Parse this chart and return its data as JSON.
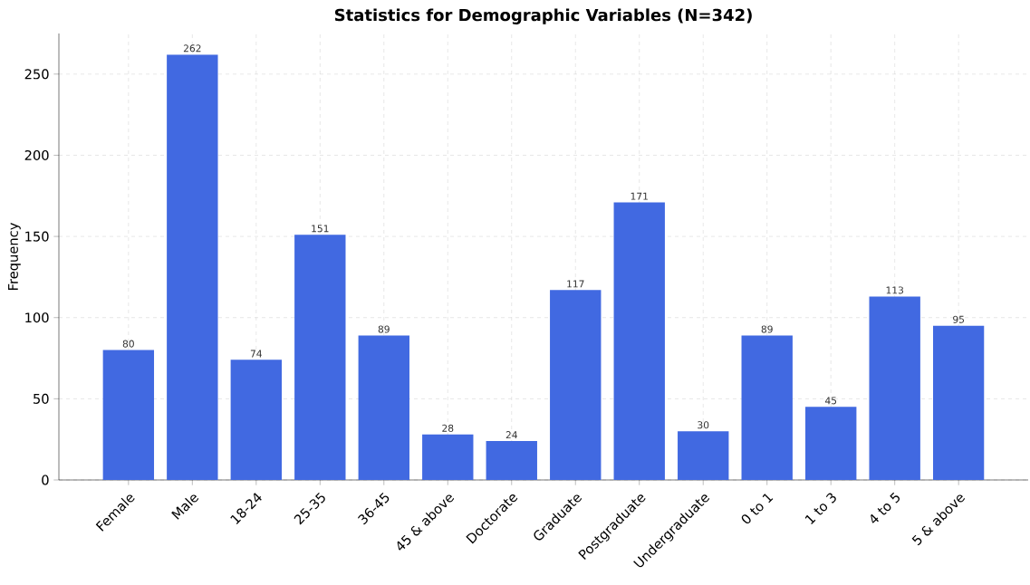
{
  "chart_data": {
    "type": "bar",
    "title": "Statistics for Demographic Variables (N=342)",
    "ylabel": "Frequency",
    "categories": [
      "Female",
      "Male",
      "18-24",
      "25-35",
      "36-45",
      "45 & above",
      "Doctorate",
      "Graduate",
      "Postgraduate",
      "Undergraduate",
      "0 to 1",
      "1 to 3",
      "4 to 5",
      "5 & above"
    ],
    "values": [
      80,
      262,
      74,
      151,
      89,
      28,
      24,
      117,
      171,
      30,
      89,
      45,
      113,
      95
    ],
    "color": "#4169e1",
    "ylim": [
      0,
      275
    ],
    "yticks": [
      0,
      50,
      100,
      150,
      200,
      250
    ],
    "grid": true,
    "data_labels": true
  }
}
